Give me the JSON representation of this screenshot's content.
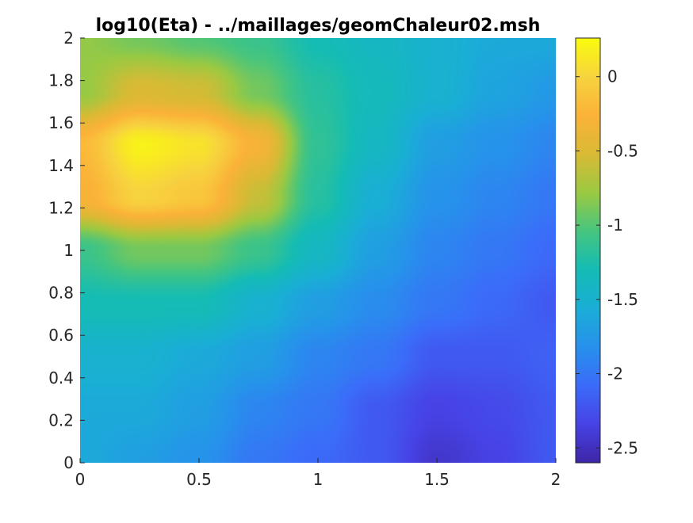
{
  "chart_data": {
    "type": "heatmap",
    "title": "log10(Eta) - ../maillages/geomChaleur02.msh",
    "xlabel": "",
    "ylabel": "",
    "xlim": [
      0,
      2
    ],
    "ylim": [
      0,
      2
    ],
    "x_ticks": [
      "0",
      "0.5",
      "1",
      "1.5",
      "2"
    ],
    "y_ticks": [
      "0",
      "0.2",
      "0.4",
      "0.6",
      "0.8",
      "1",
      "1.2",
      "1.4",
      "1.6",
      "1.8",
      "2"
    ],
    "colorbar": {
      "range": [
        -2.6,
        0.26
      ],
      "ticks": [
        "-2.5",
        "-2",
        "-1.5",
        "-1",
        "-0.5",
        "0"
      ],
      "colormap": "parula"
    },
    "colormap_stops": [
      "#3e26a8",
      "#4743e6",
      "#3b6cf9",
      "#2791ec",
      "#1aaed6",
      "#14bcb5",
      "#46c57f",
      "#9bc942",
      "#d9ba35",
      "#fbb238",
      "#f7d33f",
      "#f9fb0e"
    ],
    "field_x": [
      0,
      0.25,
      0.5,
      0.75,
      1.0,
      1.25,
      1.5,
      1.75,
      2.0
    ],
    "field_y": [
      0,
      0.25,
      0.5,
      0.75,
      1.0,
      1.25,
      1.5,
      1.75,
      2.0
    ],
    "field_values": [
      [
        -1.6,
        -1.7,
        -1.8,
        -2.0,
        -2.1,
        -2.2,
        -2.45,
        -2.35,
        -2.2
      ],
      [
        -1.6,
        -1.6,
        -1.7,
        -1.9,
        -2.0,
        -2.2,
        -2.35,
        -2.3,
        -2.2
      ],
      [
        -1.5,
        -1.5,
        -1.6,
        -1.7,
        -1.9,
        -2.0,
        -2.2,
        -2.2,
        -2.15
      ],
      [
        -1.3,
        -1.3,
        -1.3,
        -1.5,
        -1.7,
        -1.85,
        -2.0,
        -2.1,
        -2.2
      ],
      [
        -1.1,
        -0.9,
        -0.9,
        -1.1,
        -1.4,
        -1.7,
        -1.9,
        -2.0,
        -2.1
      ],
      [
        -0.3,
        0.0,
        -0.1,
        -0.6,
        -1.2,
        -1.55,
        -1.8,
        -1.9,
        -2.0
      ],
      [
        -0.2,
        0.2,
        0.1,
        -0.3,
        -1.15,
        -1.4,
        -1.7,
        -1.8,
        -1.9
      ],
      [
        -0.8,
        -0.5,
        -0.55,
        -0.9,
        -1.2,
        -1.35,
        -1.5,
        -1.65,
        -1.75
      ],
      [
        -0.8,
        -0.9,
        -1.0,
        -1.1,
        -1.3,
        -1.4,
        -1.5,
        -1.6,
        -1.6
      ]
    ]
  }
}
